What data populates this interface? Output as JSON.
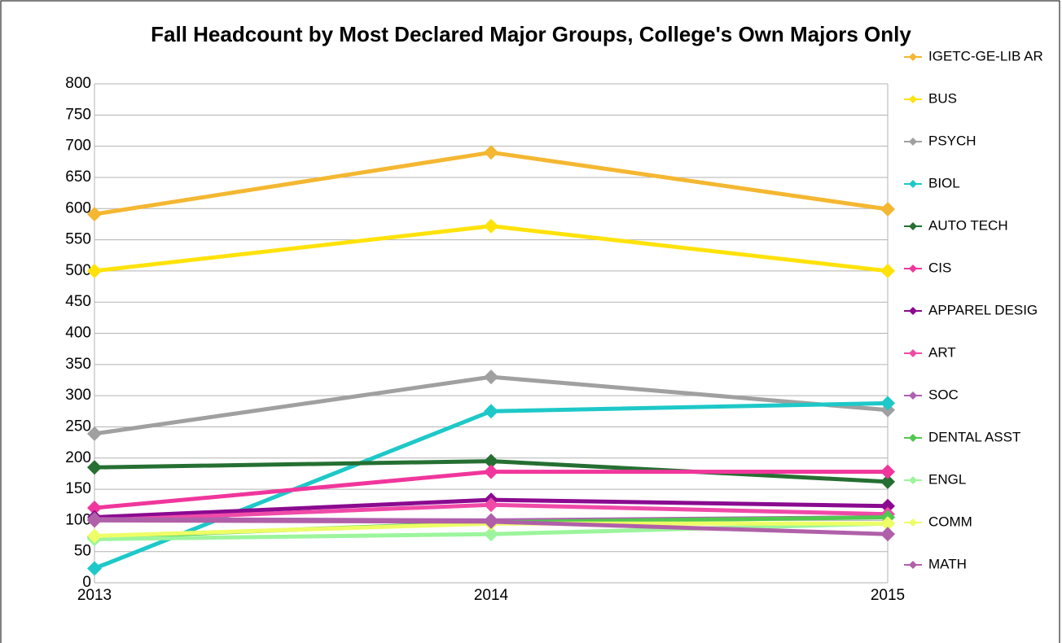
{
  "chart_data": {
    "type": "line",
    "title": "Fall Headcount by Most Declared Major Groups, College's Own Majors Only",
    "categories": [
      "2013",
      "2014",
      "2015"
    ],
    "ylim": [
      0,
      800
    ],
    "yticks": [
      0,
      50,
      100,
      150,
      200,
      250,
      300,
      350,
      400,
      450,
      500,
      550,
      600,
      650,
      700,
      750,
      800
    ],
    "grid": true,
    "legend": "right",
    "series": [
      {
        "name": "IGETC-GE-LIB AR",
        "color": "#f4b731",
        "values": [
          591,
          690,
          599
        ]
      },
      {
        "name": "BUS",
        "color": "#ffe20a",
        "values": [
          500,
          572,
          500
        ]
      },
      {
        "name": "PSYCH",
        "color": "#a0a0a0",
        "values": [
          239,
          330,
          277
        ]
      },
      {
        "name": "BIOL",
        "color": "#1ec8c8",
        "values": [
          23,
          275,
          288
        ]
      },
      {
        "name": "AUTO TECH",
        "color": "#256f32",
        "values": [
          185,
          195,
          162
        ]
      },
      {
        "name": "CIS",
        "color": "#f0369c",
        "values": [
          120,
          178,
          178
        ]
      },
      {
        "name": "APPAREL DESIG",
        "color": "#8a0a90",
        "values": [
          105,
          133,
          123
        ]
      },
      {
        "name": "ART",
        "color": "#f04aa8",
        "values": [
          100,
          125,
          110
        ]
      },
      {
        "name": "SOC",
        "color": "#b060b0",
        "values": [
          102,
          100,
          105
        ]
      },
      {
        "name": "DENTAL ASST",
        "color": "#50c850",
        "values": [
          73,
          97,
          105
        ]
      },
      {
        "name": "ENGL",
        "color": "#9cf59c",
        "values": [
          70,
          78,
          95
        ]
      },
      {
        "name": "COMM",
        "color": "#eeff66",
        "values": [
          75,
          95,
          95
        ]
      },
      {
        "name": "MATH",
        "color": "#b060a8",
        "values": [
          100,
          98,
          78
        ]
      }
    ]
  }
}
